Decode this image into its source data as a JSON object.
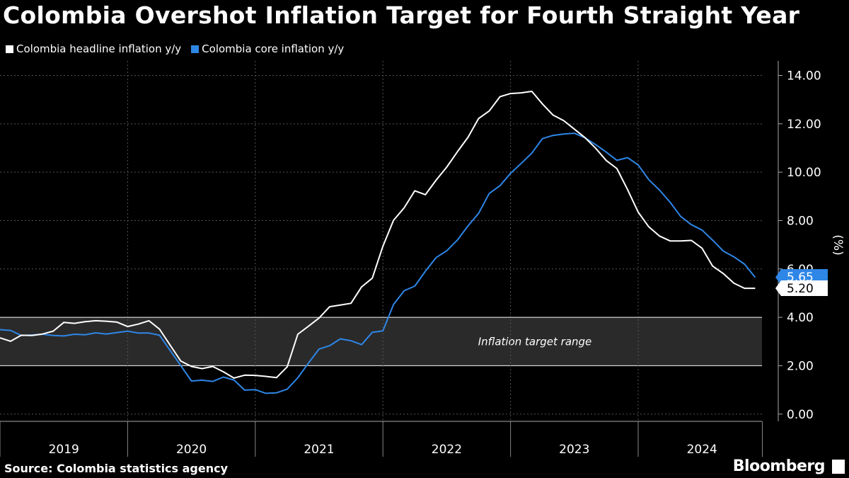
{
  "chart_data": {
    "type": "line",
    "title": "Colombia Overshot Inflation Target for Fourth Straight Year",
    "source": "Source: Colombia statistics agency",
    "brand": "Bloomberg",
    "ylabel": "(%)",
    "ylim": [
      -0.3,
      14.6
    ],
    "xlim": [
      2019.0,
      2024.97
    ],
    "y_ticks": [
      "14.00",
      "12.00",
      "10.00",
      "8.00",
      "6.00",
      "4.00",
      "2.00",
      "0.00"
    ],
    "y_tick_values": [
      14,
      12,
      10,
      8,
      6,
      4,
      2,
      0
    ],
    "x_year_labels": [
      "2019",
      "2020",
      "2021",
      "2022",
      "2023",
      "2024"
    ],
    "grid": true,
    "legend_placement": "top-left",
    "band": {
      "low": 2,
      "high": 4,
      "label": "Inflation target range"
    },
    "colors": {
      "headline": "#ffffff",
      "core": "#2e86e6",
      "background": "#000000",
      "band": "#2a2a2a"
    },
    "series": [
      {
        "name": "Colombia headline inflation y/y",
        "color": "#ffffff",
        "end_label": "5.20",
        "x": [
          2019.0,
          2019.083,
          2019.167,
          2019.25,
          2019.333,
          2019.417,
          2019.5,
          2019.583,
          2019.667,
          2019.75,
          2019.833,
          2019.917,
          2020.0,
          2020.083,
          2020.167,
          2020.25,
          2020.333,
          2020.417,
          2020.5,
          2020.583,
          2020.667,
          2020.75,
          2020.833,
          2020.917,
          2021.0,
          2021.083,
          2021.167,
          2021.25,
          2021.333,
          2021.417,
          2021.5,
          2021.583,
          2021.667,
          2021.75,
          2021.833,
          2021.917,
          2022.0,
          2022.083,
          2022.167,
          2022.25,
          2022.333,
          2022.417,
          2022.5,
          2022.583,
          2022.667,
          2022.75,
          2022.833,
          2022.917,
          2023.0,
          2023.083,
          2023.167,
          2023.25,
          2023.333,
          2023.417,
          2023.5,
          2023.583,
          2023.667,
          2023.75,
          2023.833,
          2023.917,
          2024.0,
          2024.083,
          2024.167,
          2024.25,
          2024.333,
          2024.417,
          2024.5,
          2024.583,
          2024.667,
          2024.75,
          2024.833,
          2024.917
        ],
        "values": [
          3.15,
          3.01,
          3.26,
          3.25,
          3.31,
          3.43,
          3.79,
          3.75,
          3.82,
          3.86,
          3.84,
          3.8,
          3.62,
          3.72,
          3.86,
          3.51,
          2.85,
          2.19,
          1.97,
          1.88,
          1.97,
          1.75,
          1.49,
          1.61,
          1.6,
          1.56,
          1.51,
          1.95,
          3.3,
          3.63,
          3.97,
          4.44,
          4.51,
          4.58,
          5.26,
          5.62,
          6.94,
          8.01,
          8.53,
          9.23,
          9.07,
          9.67,
          10.21,
          10.84,
          11.44,
          12.22,
          12.53,
          13.12,
          13.25,
          13.28,
          13.34,
          12.82,
          12.36,
          12.13,
          11.78,
          11.43,
          10.99,
          10.48,
          10.15,
          9.28,
          8.35,
          7.74,
          7.36,
          7.16,
          7.16,
          7.18,
          6.86,
          6.12,
          5.81,
          5.41,
          5.2,
          5.2
        ]
      },
      {
        "name": "Colombia core inflation y/y",
        "color": "#2e86e6",
        "end_label": "5.65",
        "x": [
          2019.0,
          2019.083,
          2019.167,
          2019.25,
          2019.333,
          2019.417,
          2019.5,
          2019.583,
          2019.667,
          2019.75,
          2019.833,
          2019.917,
          2020.0,
          2020.083,
          2020.167,
          2020.25,
          2020.333,
          2020.417,
          2020.5,
          2020.583,
          2020.667,
          2020.75,
          2020.833,
          2020.917,
          2021.0,
          2021.083,
          2021.167,
          2021.25,
          2021.333,
          2021.417,
          2021.5,
          2021.583,
          2021.667,
          2021.75,
          2021.833,
          2021.917,
          2022.0,
          2022.083,
          2022.167,
          2022.25,
          2022.333,
          2022.417,
          2022.5,
          2022.583,
          2022.667,
          2022.75,
          2022.833,
          2022.917,
          2023.0,
          2023.083,
          2023.167,
          2023.25,
          2023.333,
          2023.417,
          2023.5,
          2023.583,
          2023.667,
          2023.75,
          2023.833,
          2023.917,
          2024.0,
          2024.083,
          2024.167,
          2024.25,
          2024.333,
          2024.417,
          2024.5,
          2024.583,
          2024.667,
          2024.75,
          2024.833,
          2024.917
        ],
        "values": [
          3.49,
          3.46,
          3.25,
          3.27,
          3.3,
          3.25,
          3.23,
          3.3,
          3.28,
          3.36,
          3.31,
          3.37,
          3.43,
          3.35,
          3.35,
          3.26,
          2.63,
          2.0,
          1.37,
          1.4,
          1.35,
          1.53,
          1.41,
          0.99,
          1.01,
          0.86,
          0.88,
          1.03,
          1.5,
          2.11,
          2.69,
          2.83,
          3.11,
          3.03,
          2.87,
          3.38,
          3.44,
          4.53,
          5.1,
          5.29,
          5.91,
          6.47,
          6.75,
          7.19,
          7.78,
          8.3,
          9.12,
          9.44,
          9.95,
          10.36,
          10.79,
          11.39,
          11.52,
          11.58,
          11.61,
          11.42,
          11.14,
          10.83,
          10.49,
          10.6,
          10.3,
          9.69,
          9.26,
          8.76,
          8.17,
          7.83,
          7.61,
          7.19,
          6.74,
          6.5,
          6.2,
          5.65
        ]
      }
    ]
  }
}
